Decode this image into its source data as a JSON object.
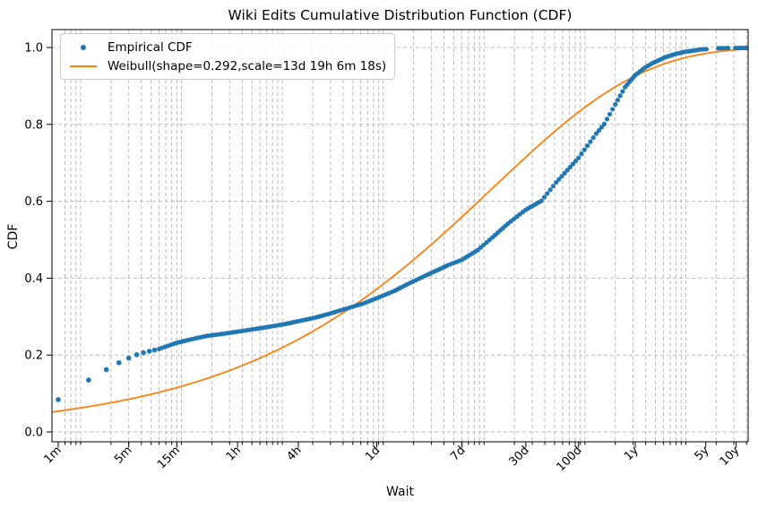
{
  "title": "Wiki Edits Cumulative Distribution Function (CDF)",
  "legend": {
    "items": [
      {
        "label": "Empirical CDF",
        "marker": "dot",
        "color": "#1f77b4"
      },
      {
        "label": "Weibull(shape=0.292,scale=13d 19h 6m 18s)",
        "marker": "line",
        "color": "#ff7f0e"
      }
    ]
  },
  "chart_data": {
    "type": "scatter",
    "title": "Wiki Edits Cumulative Distribution Function (CDF)",
    "xlabel": "Wait",
    "ylabel": "CDF",
    "x_scale": "log",
    "x_unit": "seconds",
    "xlim_seconds": [
      52,
      415000000
    ],
    "ylim": [
      -0.0256,
      1.0466
    ],
    "grid": {
      "style": "dashed",
      "color": "#bdbdbd",
      "which": "log minors + y majors"
    },
    "x_ticks": [
      {
        "label": "1m",
        "seconds": 60
      },
      {
        "label": "5m",
        "seconds": 300
      },
      {
        "label": "15m",
        "seconds": 900
      },
      {
        "label": "1h",
        "seconds": 3600
      },
      {
        "label": "4h",
        "seconds": 14400
      },
      {
        "label": "1d",
        "seconds": 86400
      },
      {
        "label": "7d",
        "seconds": 604800
      },
      {
        "label": "30d",
        "seconds": 2592000
      },
      {
        "label": "100d",
        "seconds": 8640000
      },
      {
        "label": "1y",
        "seconds": 31536000
      },
      {
        "label": "5y",
        "seconds": 157680000
      },
      {
        "label": "10y",
        "seconds": 315360000
      }
    ],
    "y_ticks": [
      {
        "label": "0.0",
        "value": 0.0
      },
      {
        "label": "0.2",
        "value": 0.2
      },
      {
        "label": "0.4",
        "value": 0.4
      },
      {
        "label": "0.6",
        "value": 0.6
      },
      {
        "label": "0.8",
        "value": 0.8
      },
      {
        "label": "1.0",
        "value": 1.0
      }
    ],
    "series": [
      {
        "name": "Empirical CDF",
        "type": "scatter",
        "color": "#1f77b4",
        "sparse_left_points": [
          [
            60,
            0.084
          ],
          [
            120,
            0.135
          ],
          [
            180,
            0.162
          ],
          [
            240,
            0.18
          ],
          [
            300,
            0.192
          ],
          [
            360,
            0.201
          ],
          [
            420,
            0.206
          ],
          [
            480,
            0.21
          ],
          [
            540,
            0.213
          ]
        ],
        "dense_points": [
          [
            600,
            0.216
          ],
          [
            900,
            0.232
          ],
          [
            1200,
            0.24
          ],
          [
            1800,
            0.25
          ],
          [
            2700,
            0.256
          ],
          [
            3600,
            0.261
          ],
          [
            5400,
            0.268
          ],
          [
            7200,
            0.273
          ],
          [
            10800,
            0.281
          ],
          [
            14400,
            0.288
          ],
          [
            21600,
            0.298
          ],
          [
            28800,
            0.307
          ],
          [
            43200,
            0.321
          ],
          [
            64800,
            0.335
          ],
          [
            86400,
            0.348
          ],
          [
            129600,
            0.367
          ],
          [
            172800,
            0.384
          ],
          [
            259200,
            0.406
          ],
          [
            345600,
            0.421
          ],
          [
            432000,
            0.433
          ],
          [
            604800,
            0.448
          ],
          [
            864000,
            0.473
          ],
          [
            1209600,
            0.506
          ],
          [
            1728000,
            0.542
          ],
          [
            2592000,
            0.578
          ],
          [
            3700000,
            0.601
          ],
          [
            5184000,
            0.649
          ],
          [
            8640000,
            0.713
          ],
          [
            12960000,
            0.776
          ],
          [
            15552000,
            0.801
          ],
          [
            20000000,
            0.852
          ],
          [
            25000000,
            0.897
          ],
          [
            29000000,
            0.917
          ],
          [
            31536000,
            0.928
          ],
          [
            39420000,
            0.948
          ],
          [
            47304000,
            0.96
          ],
          [
            63072000,
            0.975
          ],
          [
            78840000,
            0.983
          ],
          [
            94608000,
            0.988
          ],
          [
            126144000,
            0.993
          ],
          [
            141912000,
            0.995
          ],
          [
            160000000,
            0.9955
          ]
        ],
        "sparse_right_points": [
          [
            210000000,
            0.998
          ],
          [
            222000000,
            0.9982
          ],
          [
            235000000,
            0.9983
          ],
          [
            248000000,
            0.9984
          ],
          [
            262000000,
            0.9985
          ],
          [
            310000000,
            0.9986
          ],
          [
            328000000,
            0.9987
          ],
          [
            347000000,
            0.9988
          ],
          [
            367000000,
            0.9988
          ],
          [
            388000000,
            0.9989
          ],
          [
            400000000,
            0.999
          ]
        ]
      },
      {
        "name": "Weibull fit",
        "type": "line",
        "color": "#ff7f0e",
        "weibull": {
          "shape": 0.292,
          "scale_seconds": 1191978,
          "scale_label": "13d 19h 6m 18s"
        }
      }
    ]
  }
}
